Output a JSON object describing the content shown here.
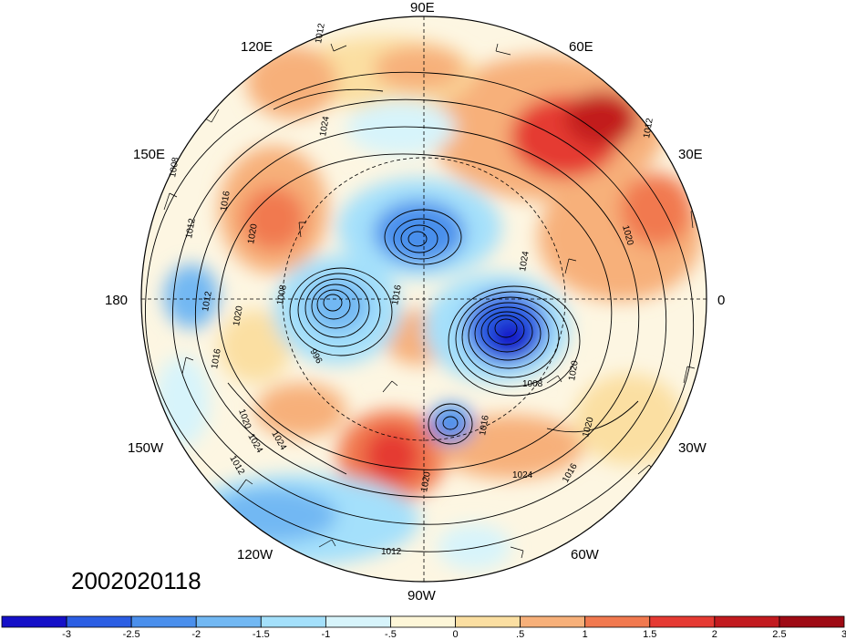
{
  "timestamp": "2002020118",
  "longitude_labels": {
    "lon_90e": "90E",
    "lon_120e": "120E",
    "lon_60e": "60E",
    "lon_150e": "150E",
    "lon_30e": "30E",
    "lon_180": "180",
    "lon_0": "0",
    "lon_150w": "150W",
    "lon_30w": "30W",
    "lon_120w": "120W",
    "lon_60w": "60W",
    "lon_90w": "90W"
  },
  "contour_labels": {
    "c1": "1012",
    "c2": "1008",
    "c3": "1012",
    "c4": "1016",
    "c5": "1020",
    "c6": "1020",
    "c7": "1016",
    "c8": "1008",
    "c9": "1016",
    "c10": "996",
    "c11": "1020",
    "c12": "1024",
    "c13": "1012",
    "c14": "1024",
    "c15": "1020",
    "c16": "1008",
    "c17": "1020",
    "c18": "1016",
    "c19": "1024",
    "c20": "1016",
    "c21": "1020",
    "c22": "1012",
    "c23": "1012",
    "c24": "1012",
    "c25": "1024",
    "c26": "1020",
    "c27": "1024"
  },
  "colorbar": {
    "colors": [
      "#1510c8",
      "#2b5ee3",
      "#4a8fec",
      "#72b8f3",
      "#a4e0fb",
      "#d7f4fb",
      "#fdf6d8",
      "#fbdfa2",
      "#f7b07a",
      "#f1794f",
      "#e53a33",
      "#c21a1f",
      "#9e0a14"
    ],
    "labels": [
      "-3",
      "-2.5",
      "-2",
      "-1.5",
      "-1",
      "-.5",
      "0",
      ".5",
      "1",
      "1.5",
      "2",
      "2.5",
      "3"
    ]
  },
  "colors": {
    "neutral_bg": "#fdf6e2",
    "contour": "#000000"
  }
}
